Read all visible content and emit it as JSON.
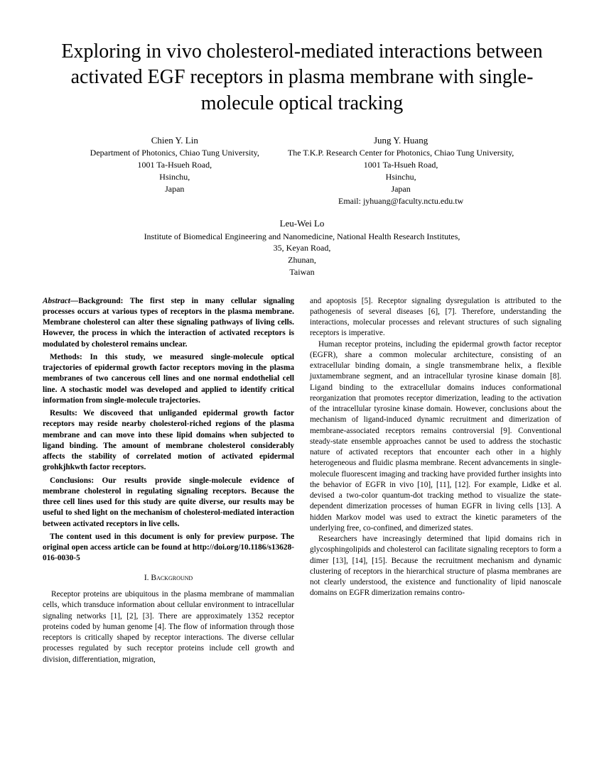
{
  "title": "Exploring in vivo cholesterol-mediated interactions between activated EGF receptors in plasma membrane with single-molecule optical tracking",
  "authors": {
    "a1": {
      "name": "Chien Y. Lin",
      "l1": "Department of Photonics, Chiao Tung University,",
      "l2": "1001 Ta-Hsueh Road,",
      "l3": "Hsinchu,",
      "l4": "Japan"
    },
    "a2": {
      "name": "Jung Y. Huang",
      "l1": "The T.K.P. Research Center for Photonics, Chiao Tung University,",
      "l2": "1001 Ta-Hsueh Road,",
      "l3": "Hsinchu,",
      "l4": "Japan",
      "l5": "Email: jyhuang@faculty.nctu.edu.tw"
    },
    "a3": {
      "name": "Leu-Wei Lo",
      "l1": "Institute of Biomedical Engineering and Nanomedicine, National Health Research Institutes,",
      "l2": "35, Keyan Road,",
      "l3": "Zhunan,",
      "l4": "Taiwan"
    }
  },
  "abstract": {
    "label": "Abstract—",
    "p1": "Background: The first step in many cellular signaling processes occurs at various types of receptors in the plasma membrane. Membrane cholesterol can alter these signaling pathways of living cells. However, the process in which the interaction of activated receptors is modulated by cholesterol remains unclear.",
    "p2": "Methods: In this study, we measured single-molecule optical trajectories of epidermal growth factor receptors moving in the plasma membranes of two cancerous cell lines and one normal endothelial cell line. A stochastic model was developed and applied to identify critical information from single-molecule trajectories.",
    "p3": "Results: We discoveed that unliganded epidermal growth factor receptors may reside nearby cholesterol-riched regions of the plasma membrane and can move into these lipid domains when subjected to ligand binding. The amount of membrane cholesterol considerably affects the stability of correlated motion of activated epidermal grohkjhkwth factor receptors.",
    "p4": "Conclusions: Our results provide single-molecule evidence of membrane cholesterol in regulating signaling receptors. Because the three cell lines used for this study are quite diverse, our results may be useful to shed light on the mechanism of cholesterol-mediated interaction between activated receptors in live cells.",
    "p5": "The content used in this document is only for preview purpose. The original open access article can be found at http://doi.org/10.1186/s13628-016-0030-5"
  },
  "section1": {
    "heading": "I. Background",
    "p1": "Receptor proteins are ubiquitous in the plasma membrane of mammalian cells, which transduce information about cellular environment to intracellular signaling networks [1], [2], [3]. There are approximately 1352 receptor proteins coded by human genome [4]. The flow of information through those receptors is critically shaped by receptor interactions. The diverse cellular processes regulated by such receptor proteins include cell growth and division, differentiation, migration,"
  },
  "col2": {
    "p1": "and apoptosis [5]. Receptor signaling dysregulation is attributed to the pathogenesis of several diseases [6], [7]. Therefore, understanding the interactions, molecular processes and relevant structures of such signaling receptors is imperative.",
    "p2": "Human receptor proteins, including the epidermal growth factor receptor (EGFR), share a common molecular architecture, consisting of an extracellular binding domain, a single transmembrane helix, a flexible juxtamembrane segment, and an intracellular tyrosine kinase domain [8]. Ligand binding to the extracellular domains induces conformational reorganization that promotes receptor dimerization, leading to the activation of the intracellular tyrosine kinase domain. However, conclusions about the mechanism of ligand-induced dynamic recruitment and dimerization of membrane-associated receptors remains controversial [9]. Conventional steady-state ensemble approaches cannot be used to address the stochastic nature of activated receptors that encounter each other in a highly heterogeneous and fluidic plasma membrane. Recent advancements in single-molecule fluorescent imaging and tracking have provided further insights into the behavior of EGFR in vivo [10], [11], [12]. For example, Lidke et al. devised a two-color quantum-dot tracking method to visualize the state-dependent dimerization processes of human EGFR in living cells [13]. A hidden Markov model was used to extract the kinetic parameters of the underlying free, co-confined, and dimerized states.",
    "p3": "Researchers have increasingly determined that lipid domains rich in glycosphingolipids and cholesterol can facilitate signaling receptors to form a dimer [13], [14], [15]. Because the recruitment mechanism and dynamic clustering of receptors in the hierarchical structure of plasma membranes are not clearly understood, the existence and functionality of lipid nanoscale domains on EGFR dimerization remains contro-"
  }
}
